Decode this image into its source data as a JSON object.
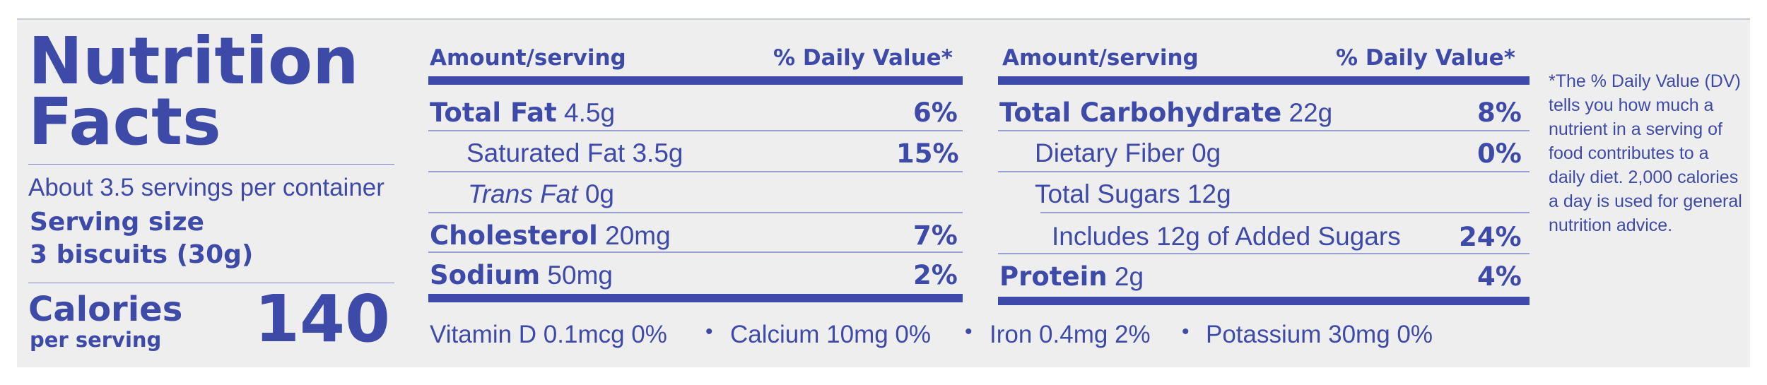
{
  "left": {
    "title_line1": "Nutrition",
    "title_line2": "Facts",
    "servings": "About 3.5 servings per container",
    "serving_size_label": "Serving size",
    "serving_size_value": "3 biscuits (30g)",
    "calories_label": "Calories",
    "calories_sub": "per serving",
    "calories_value": "140"
  },
  "col1": {
    "header_amount": "Amount/serving",
    "header_dv": "% Daily Value*",
    "rows": [
      {
        "name": "Total Fat",
        "amount": "4.5g",
        "dv": "6%"
      },
      {
        "name": "Saturated Fat",
        "amount": "3.5g",
        "dv": "15%"
      },
      {
        "name": "Trans Fat",
        "amount": "0g",
        "dv": ""
      },
      {
        "name": "Cholesterol",
        "amount": "20mg",
        "dv": "7%"
      },
      {
        "name": "Sodium",
        "amount": "50mg",
        "dv": "2%"
      }
    ]
  },
  "col2": {
    "header_amount": "Amount/serving",
    "header_dv": "% Daily Value*",
    "rows": [
      {
        "name": "Total Carbohydrate",
        "amount": "22g",
        "dv": "8%"
      },
      {
        "name": "Dietary Fiber",
        "amount": "0g",
        "dv": "0%"
      },
      {
        "name": "Total Sugars",
        "amount": "12g",
        "dv": ""
      },
      {
        "name": "Includes 12g of Added Sugars",
        "amount": "",
        "dv": "24%"
      },
      {
        "name": "Protein",
        "amount": "2g",
        "dv": "4%"
      }
    ]
  },
  "vitamins": [
    "Vitamin D 0.1mcg 0%",
    "Calcium 10mg 0%",
    "Iron 0.4mg 2%",
    "Potassium 30mg 0%"
  ],
  "separator": "•",
  "footnote": "*The % Daily Value (DV) tells you how much a nutrient in a serving of food contributes to a daily diet. 2,000 calories a day is used for general nutrition advice.",
  "colors": {
    "ink": "#3d4aa8",
    "panel": "#efeeef"
  }
}
